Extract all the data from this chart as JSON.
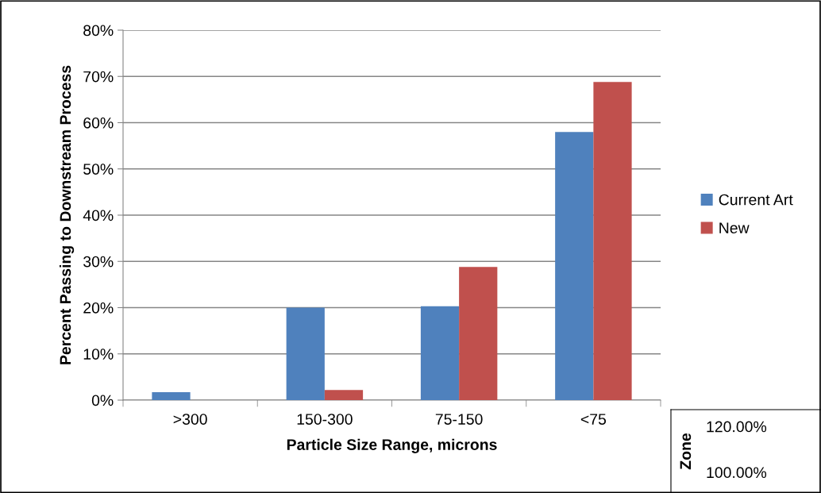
{
  "chart_data": [
    {
      "type": "bar",
      "xlabel": "Particle Size Range, microns",
      "ylabel": "Percent Passing to Downstream Process",
      "categories": [
        ">300",
        "150-300",
        "75-150",
        "<75"
      ],
      "series": [
        {
          "name": "Current Art",
          "color": "#4f81bd",
          "values": [
            1.7,
            20.0,
            20.3,
            58.0
          ]
        },
        {
          "name": "New",
          "color": "#c0504d",
          "values": [
            0,
            2.2,
            28.8,
            68.8
          ]
        }
      ],
      "ylim": [
        0,
        80
      ],
      "yticks": [
        {
          "value": 0,
          "label": "0%"
        },
        {
          "value": 10,
          "label": "10%"
        },
        {
          "value": 20,
          "label": "20%"
        },
        {
          "value": 30,
          "label": "30%"
        },
        {
          "value": 40,
          "label": "40%"
        },
        {
          "value": 50,
          "label": "50%"
        },
        {
          "value": 60,
          "label": "60%"
        },
        {
          "value": 70,
          "label": "70%"
        },
        {
          "value": 80,
          "label": "80%"
        }
      ],
      "grid": "y",
      "legend": "right"
    },
    {
      "type": "other",
      "ylabel": "Zone",
      "annotations": [
        "120.00%",
        "100.00%"
      ]
    }
  ]
}
